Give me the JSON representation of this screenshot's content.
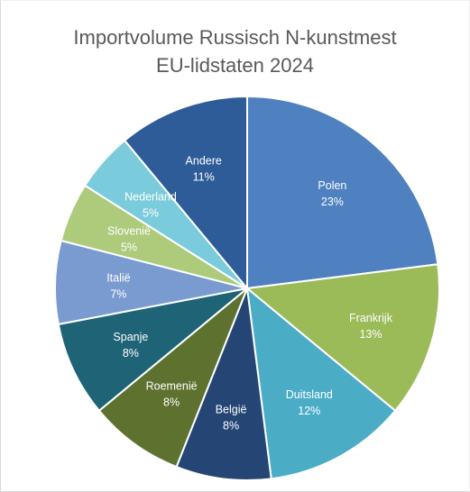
{
  "chart_data": {
    "type": "pie",
    "title_lines": [
      "Importvolume Russisch N-kunstmest",
      "EU-lidstaten 2024"
    ],
    "unit": "%",
    "slices": [
      {
        "label": "Polen",
        "value": 23,
        "color": "#4F81C0"
      },
      {
        "label": "Frankrijk",
        "value": 13,
        "color": "#9BBB59"
      },
      {
        "label": "Duitsland",
        "value": 12,
        "color": "#4BACC6"
      },
      {
        "label": "België",
        "value": 8,
        "color": "#254675"
      },
      {
        "label": "Roemenië",
        "value": 8,
        "color": "#5E7230"
      },
      {
        "label": "Spanje",
        "value": 8,
        "color": "#1F6377"
      },
      {
        "label": "Italië",
        "value": 7,
        "color": "#7A9BD0"
      },
      {
        "label": "Slovenië",
        "value": 5,
        "color": "#ADCB7B"
      },
      {
        "label": "Nederland",
        "value": 5,
        "color": "#7ACBDC"
      },
      {
        "label": "Andere",
        "value": 11,
        "color": "#2E5C99"
      }
    ]
  }
}
